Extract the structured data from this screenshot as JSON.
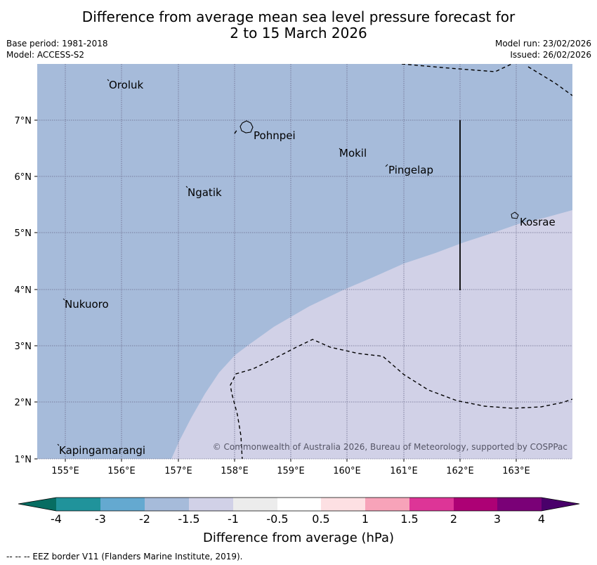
{
  "header": {
    "title_line1": "Difference from average mean sea level pressure forecast for",
    "title_line2": "2 to 15 March 2026",
    "base_period": "Base period: 1981-2018",
    "model": "Model: ACCESS-S2",
    "model_run": "Model run: 23/02/2026",
    "issued": "Issued: 26/02/2026"
  },
  "map": {
    "lon_ticks": [
      "155°E",
      "156°E",
      "157°E",
      "158°E",
      "159°E",
      "160°E",
      "161°E",
      "162°E",
      "163°E"
    ],
    "lat_ticks": [
      "1°N",
      "2°N",
      "3°N",
      "4°N",
      "5°N",
      "6°N",
      "7°N"
    ],
    "places": [
      "Oroluk",
      "Pohnpei",
      "Mokil",
      "Pingelap",
      "Ngatik",
      "Kosrae",
      "Nukuoro",
      "Kapingamarangi"
    ],
    "copyright": "© Commonwealth of Australia 2026, Bureau of Meteorology, supported by COSPPac",
    "colors": {
      "region_minus_1_5_to_minus_2": "#a6bbda",
      "region_minus_1_to_minus_1_5": "#d1d1e7"
    }
  },
  "colorbar": {
    "title": "Difference from average (hPa)",
    "labels": [
      "-4",
      "-3",
      "-2",
      "-1.5",
      "-1",
      "-0.5",
      "0.5",
      "1",
      "1.5",
      "2",
      "3",
      "4"
    ],
    "colors": [
      "#076d62",
      "#20939b",
      "#64a9d0",
      "#a6bbda",
      "#d1d1e7",
      "#ececec",
      "#ffffff",
      "#fde0e3",
      "#f7a3b9",
      "#dd3597",
      "#ad0175",
      "#7a0177",
      "#49006a"
    ]
  },
  "footer": {
    "eez_note": "--  --  -- EEZ border V11 (Flanders Marine Institute, 2019)."
  }
}
